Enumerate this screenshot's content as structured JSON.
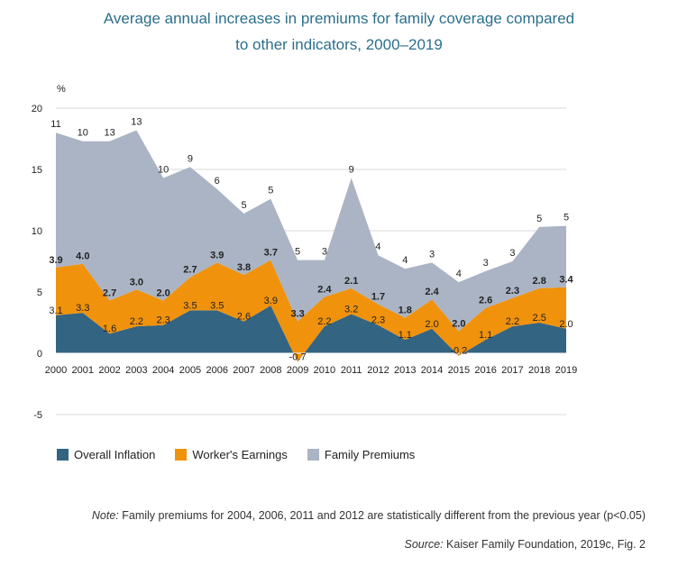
{
  "title": {
    "line1": "Average annual increases in premiums for family coverage compared",
    "line2": "to other indicators, 2000–2019"
  },
  "chart_data": {
    "type": "area",
    "ylabel": "%",
    "ylim": [
      -5,
      20
    ],
    "yticks": [
      -5,
      0,
      5,
      10,
      15,
      20
    ],
    "grid": true,
    "x": [
      "2000",
      "2001",
      "2002",
      "2003",
      "2004",
      "2005",
      "2006",
      "2007",
      "2008",
      "2009",
      "2010",
      "2011",
      "2012",
      "2013",
      "2014",
      "2015",
      "2016",
      "2017",
      "2018",
      "2019"
    ],
    "series": [
      {
        "name": "Overall Inflation",
        "color": "#336482",
        "values": [
          3.1,
          3.3,
          1.6,
          2.2,
          2.3,
          3.5,
          3.5,
          2.6,
          3.9,
          -0.7,
          2.2,
          3.2,
          2.3,
          1.1,
          2.0,
          -0.2,
          1.1,
          2.2,
          2.5,
          2.0
        ],
        "labels": [
          "3.1",
          "3.3",
          "1.6",
          "2.2",
          "2.3",
          "3.5",
          "3.5",
          "2.6",
          "3.9",
          "-0.7",
          "2.2",
          "3.2",
          "2.3",
          "1.1",
          "2.0",
          "-0.2",
          "1.1",
          "2.2",
          "2.5",
          "2.0"
        ]
      },
      {
        "name": "Worker's Earnings",
        "color": "#f0920c",
        "values": [
          3.9,
          4.0,
          2.7,
          3.0,
          2.0,
          2.7,
          3.9,
          3.8,
          3.7,
          3.3,
          2.4,
          2.1,
          1.7,
          1.8,
          2.4,
          2.0,
          2.6,
          2.3,
          2.8,
          3.4
        ],
        "labels": [
          "3.9",
          "4.0",
          "2.7",
          "3.0",
          "2.0",
          "2.7",
          "3.9",
          "3.8",
          "3.7",
          "3.3",
          "2.4",
          "2.1",
          "1.7",
          "1.8",
          "2.4",
          "2.0",
          "2.6",
          "2.3",
          "2.8",
          "3.4"
        ]
      },
      {
        "name": "Family Premiums",
        "color": "#aab4c4",
        "values": [
          11,
          10,
          13,
          13,
          10,
          9,
          6,
          5,
          5,
          5,
          3,
          9,
          4,
          4,
          3,
          4,
          3,
          3,
          5,
          5
        ],
        "labels": [
          "11",
          "10",
          "13",
          "13",
          "10",
          "9",
          "6",
          "5",
          "5",
          "5",
          "3",
          "9",
          "4",
          "4",
          "3",
          "4",
          "3",
          "3",
          "5",
          "5"
        ]
      }
    ]
  },
  "legend": {
    "items": [
      {
        "label": "Overall Inflation",
        "color": "#336482"
      },
      {
        "label": "Worker's Earnings",
        "color": "#f0920c"
      },
      {
        "label": "Family Premiums",
        "color": "#aab4c4"
      }
    ]
  },
  "note": {
    "prefix": "Note:",
    "text": " Family premiums for 2004, 2006, 2011 and 2012 are statistically different from the previous year (p<0.05)"
  },
  "source": {
    "prefix": "Source:",
    "text": " Kaiser Family Foundation, 2019c, Fig. 2"
  }
}
